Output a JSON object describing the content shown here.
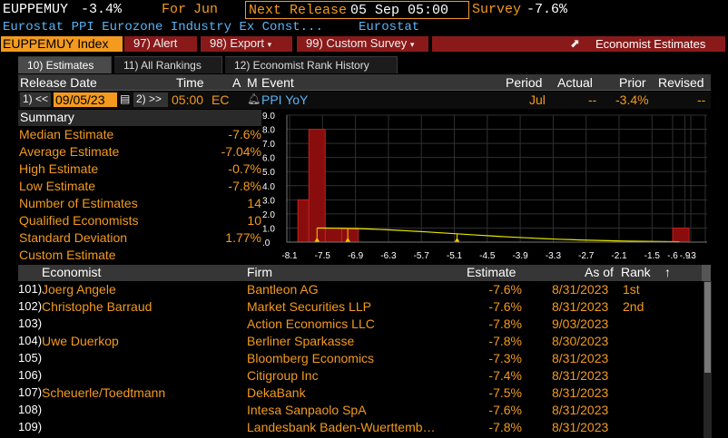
{
  "header": {
    "ticker": "EUPPEMUY",
    "change": "-3.4%",
    "for_label": "For",
    "period": "Jun",
    "next_release_label": "Next Release",
    "next_release": "05 Sep 05:00",
    "survey_label": "Survey",
    "survey_value": "-7.6%",
    "subtitle": "Eurostat PPI Eurozone Industry Ex Const...",
    "source": "Eurostat"
  },
  "toolbar": {
    "index_label": "EUPPEMUY Index",
    "alert": "97) Alert",
    "export": "98) Export",
    "custom_survey": "99) Custom Survey",
    "economist_estimates": "Economist Estimates"
  },
  "tabs": [
    "10) Estimates",
    "11) All Rankings",
    "12) Economist Rank History"
  ],
  "release_header": {
    "release_date": "Release Date",
    "time": "Time",
    "a": "A",
    "m": "M",
    "event": "Event",
    "period": "Period",
    "actual": "Actual",
    "prior": "Prior",
    "revised": "Revised"
  },
  "release_row": {
    "prev_btn": "1) <<",
    "date": "09/05/23",
    "next_btn": "2) >>",
    "time": "05:00",
    "ec": "EC",
    "event": "PPI YoY",
    "period": "Jul",
    "actual": "--",
    "prior": "-3.4%",
    "revised": "--"
  },
  "summary": {
    "title": "Summary",
    "items": [
      {
        "label": "Median Estimate",
        "value": "-7.6%"
      },
      {
        "label": "Average Estimate",
        "value": "-7.04%"
      },
      {
        "label": "High Estimate",
        "value": "-0.7%"
      },
      {
        "label": "Low Estimate",
        "value": "-7.8%"
      },
      {
        "label": "Number of Estimates",
        "value": "14"
      },
      {
        "label": "Qualified Economists",
        "value": "10"
      },
      {
        "label": "Standard Deviation",
        "value": "1.77%"
      },
      {
        "label": "Custom Estimate",
        "value": ""
      }
    ]
  },
  "chart_data": {
    "type": "bar",
    "y_ticks": [
      "9.0",
      "8.0",
      "7.0",
      "6.0",
      "5.0",
      "4.0",
      "3.0",
      "2.0",
      "1.0",
      ".0"
    ],
    "x_ticks": [
      "-8.1",
      "-7.5",
      "-6.9",
      "-6.3",
      "-5.7",
      "-5.1",
      "-4.5",
      "-3.9",
      "-3.3",
      "-2.7",
      "-2.1",
      "-1.5",
      "-.9",
      "-.6",
      "-.3"
    ],
    "ylim": [
      0,
      9
    ],
    "bars": [
      {
        "x": -7.8,
        "count": 3
      },
      {
        "x": -7.6,
        "count": 8
      },
      {
        "x": -7.3,
        "count": 1
      },
      {
        "x": -7.0,
        "count": 1
      },
      {
        "x": -0.7,
        "count": 1
      }
    ],
    "colors": {
      "bar": "#8a0d0d",
      "curve": "#e6e600"
    }
  },
  "table": {
    "headers": {
      "economist": "Economist",
      "firm": "Firm",
      "estimate": "Estimate",
      "asof": "As of",
      "rank": "Rank"
    },
    "rows": [
      {
        "num": "101)",
        "economist": "Joerg Angele",
        "firm": "Bantleon AG",
        "estimate": "-7.6%",
        "asof": "8/31/2023",
        "rank": "1st"
      },
      {
        "num": "102)",
        "economist": "Christophe Barraud",
        "firm": "Market Securities LLP",
        "estimate": "-7.6%",
        "asof": "8/31/2023",
        "rank": "2nd"
      },
      {
        "num": "103)",
        "economist": "",
        "firm": "Action Economics LLC",
        "estimate": "-7.8%",
        "asof": "9/03/2023",
        "rank": ""
      },
      {
        "num": "104)",
        "economist": "Uwe Duerkop",
        "firm": "Berliner Sparkasse",
        "estimate": "-7.8%",
        "asof": "8/30/2023",
        "rank": ""
      },
      {
        "num": "105)",
        "economist": "",
        "firm": "Bloomberg Economics",
        "estimate": "-7.3%",
        "asof": "8/31/2023",
        "rank": ""
      },
      {
        "num": "106)",
        "economist": "",
        "firm": "Citigroup Inc",
        "estimate": "-7.4%",
        "asof": "8/31/2023",
        "rank": ""
      },
      {
        "num": "107)",
        "economist": "Scheuerle/Toedtmann",
        "firm": "DekaBank",
        "estimate": "-7.5%",
        "asof": "8/31/2023",
        "rank": ""
      },
      {
        "num": "108)",
        "economist": "",
        "firm": "Intesa Sanpaolo SpA",
        "estimate": "-7.6%",
        "asof": "8/31/2023",
        "rank": ""
      },
      {
        "num": "109)",
        "economist": "",
        "firm": "Landesbank Baden-Wuerttemb…",
        "estimate": "-7.8%",
        "asof": "8/31/2023",
        "rank": ""
      }
    ]
  }
}
